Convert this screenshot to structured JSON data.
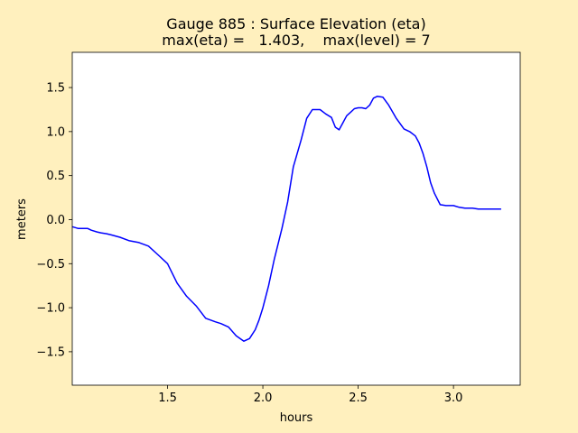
{
  "chart_data": {
    "type": "line",
    "title_line1": "Gauge 885 : Surface Elevation (eta)",
    "title_line2": "max(eta) =   1.403,    max(level) = 7",
    "xlabel": "hours",
    "ylabel": "meters",
    "xlim": [
      1.0,
      3.35
    ],
    "ylim": [
      -1.88,
      1.9
    ],
    "xticks": [
      1.5,
      2.0,
      2.5,
      3.0
    ],
    "xtick_labels": [
      "1.5",
      "2.0",
      "2.5",
      "3.0"
    ],
    "yticks": [
      -1.5,
      -1.0,
      -0.5,
      0.0,
      0.5,
      1.0,
      1.5
    ],
    "ytick_labels": [
      "−1.5",
      "−1.0",
      "−0.5",
      "0.0",
      "0.5",
      "1.0",
      "1.5"
    ],
    "grid": false,
    "colors": {
      "line": "#0000ff",
      "background": "#fff0be",
      "plot_area": "#ffffff"
    },
    "series": [
      {
        "x": [
          1.0,
          1.03,
          1.05,
          1.08,
          1.1,
          1.13,
          1.15,
          1.18,
          1.2,
          1.25,
          1.3,
          1.35,
          1.4,
          1.45,
          1.5,
          1.55,
          1.6,
          1.65,
          1.7,
          1.75,
          1.78,
          1.82,
          1.86,
          1.9,
          1.93,
          1.96,
          1.98,
          2.0,
          2.03,
          2.06,
          2.1,
          2.13,
          2.16,
          2.2,
          2.23,
          2.26,
          2.3,
          2.33,
          2.36,
          2.38,
          2.4,
          2.42,
          2.44,
          2.46,
          2.48,
          2.5,
          2.52,
          2.54,
          2.56,
          2.58,
          2.6,
          2.63,
          2.66,
          2.7,
          2.74,
          2.77,
          2.8,
          2.82,
          2.84,
          2.86,
          2.88,
          2.9,
          2.93,
          2.96,
          3.0,
          3.03,
          3.06,
          3.1,
          3.13,
          3.16,
          3.19,
          3.22,
          3.24,
          3.25
        ],
        "y": [
          -0.08,
          -0.1,
          -0.1,
          -0.1,
          -0.12,
          -0.14,
          -0.15,
          -0.16,
          -0.17,
          -0.2,
          -0.24,
          -0.26,
          -0.3,
          -0.4,
          -0.5,
          -0.72,
          -0.87,
          -0.98,
          -1.12,
          -1.16,
          -1.18,
          -1.22,
          -1.32,
          -1.38,
          -1.35,
          -1.25,
          -1.14,
          -1.0,
          -0.75,
          -0.45,
          -0.1,
          0.2,
          0.6,
          0.9,
          1.15,
          1.25,
          1.25,
          1.2,
          1.16,
          1.05,
          1.02,
          1.1,
          1.18,
          1.22,
          1.26,
          1.27,
          1.27,
          1.26,
          1.3,
          1.38,
          1.4,
          1.39,
          1.3,
          1.15,
          1.03,
          1.0,
          0.95,
          0.87,
          0.75,
          0.6,
          0.42,
          0.3,
          0.17,
          0.16,
          0.16,
          0.14,
          0.13,
          0.13,
          0.12,
          0.12,
          0.12,
          0.12,
          0.12,
          0.12
        ]
      }
    ]
  }
}
